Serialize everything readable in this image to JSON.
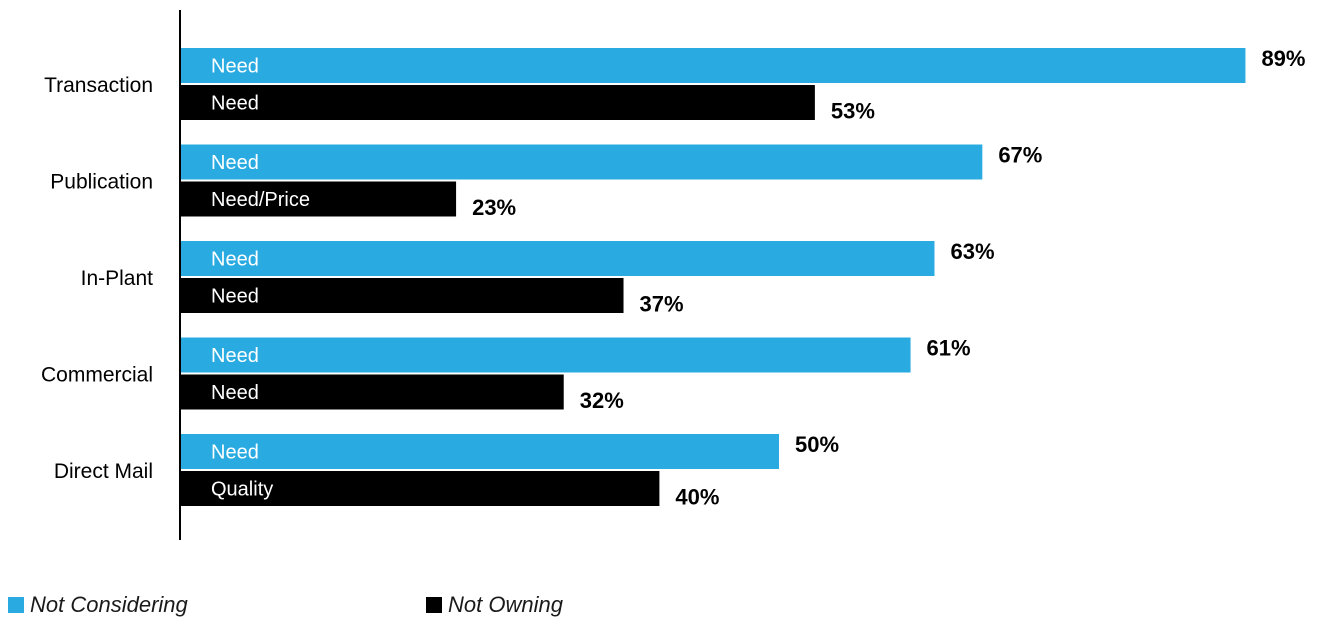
{
  "chart_data": {
    "type": "bar",
    "orientation": "horizontal",
    "categories": [
      "Transaction",
      "Publication",
      "In-Plant",
      "Commercial",
      "Direct Mail"
    ],
    "series": [
      {
        "name": "Not Considering",
        "color": "#29abe2",
        "values": [
          89,
          67,
          63,
          61,
          50
        ],
        "value_labels": [
          "89%",
          "67%",
          "63%",
          "61%",
          "50%"
        ],
        "bar_labels": [
          "Need",
          "Need",
          "Need",
          "Need",
          "Need"
        ]
      },
      {
        "name": "Not Owning",
        "color": "#000000",
        "values": [
          53,
          23,
          37,
          32,
          40
        ],
        "value_labels": [
          "53%",
          "23%",
          "37%",
          "32%",
          "40%"
        ],
        "bar_labels": [
          "Need",
          "Need/Price",
          "Need",
          "Need",
          "Quality"
        ]
      }
    ],
    "xlim": [
      0,
      100
    ],
    "grid": false,
    "legend_position": "bottom-left",
    "title": "",
    "xlabel": "",
    "ylabel": ""
  },
  "legend": {
    "items": [
      {
        "label": "Not Considering",
        "color": "#29abe2"
      },
      {
        "label": "Not Owning",
        "color": "#000000"
      }
    ]
  }
}
